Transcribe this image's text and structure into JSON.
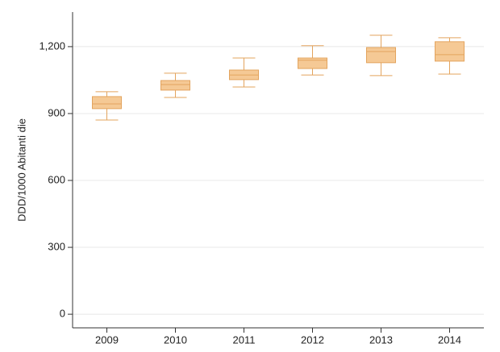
{
  "chart_data": {
    "type": "box",
    "y_label": "DDD/1000 Abitanti die",
    "categories": [
      "2009",
      "2010",
      "2011",
      "2012",
      "2013",
      "2014"
    ],
    "min": [
      871,
      972,
      1019,
      1073,
      1070,
      1077
    ],
    "q1": [
      922,
      1005,
      1052,
      1102,
      1128,
      1135
    ],
    "median": [
      943,
      1030,
      1073,
      1139,
      1178,
      1164
    ],
    "q3": [
      976,
      1048,
      1095,
      1149,
      1196,
      1222
    ],
    "max": [
      998,
      1081,
      1149,
      1204,
      1251,
      1240
    ],
    "color": "#f5c995",
    "edge_color": "#e3a45e",
    "ylim": [
      -61,
      1355
    ],
    "yticks": [
      0,
      300,
      600,
      900,
      {
        "value": 1200,
        "label": "1,200"
      }
    ],
    "grid": true
  }
}
